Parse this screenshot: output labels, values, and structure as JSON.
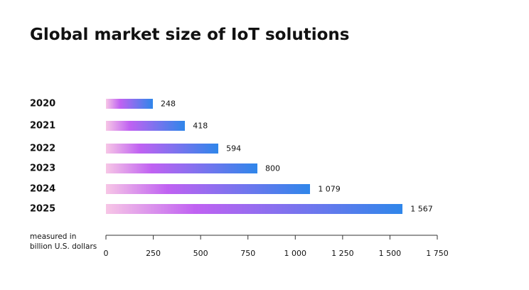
{
  "chart_data": {
    "type": "bar",
    "orientation": "horizontal",
    "title": "Global market size of IoT solutions",
    "categories": [
      "2020",
      "2021",
      "2022",
      "2023",
      "2024",
      "2025"
    ],
    "values": [
      248,
      418,
      594,
      800,
      1079,
      1567
    ],
    "value_labels": [
      "248",
      "418",
      "594",
      "800",
      "1 079",
      "1 567"
    ],
    "xlabel_lines": [
      "measured in",
      "billion U.S. dollars"
    ],
    "ylabel": "",
    "xlim": [
      0,
      1750
    ],
    "xticks": [
      0,
      250,
      500,
      750,
      1000,
      1250,
      1500,
      1750
    ],
    "xtick_labels": [
      "0",
      "250",
      "500",
      "750",
      "1 000",
      "1 250",
      "1 500",
      "1 750"
    ],
    "grid": false,
    "colors": {
      "gradient_start": "#f7c6e6",
      "gradient_mid": "#c062f2",
      "gradient_end": "#2f86ea"
    }
  }
}
